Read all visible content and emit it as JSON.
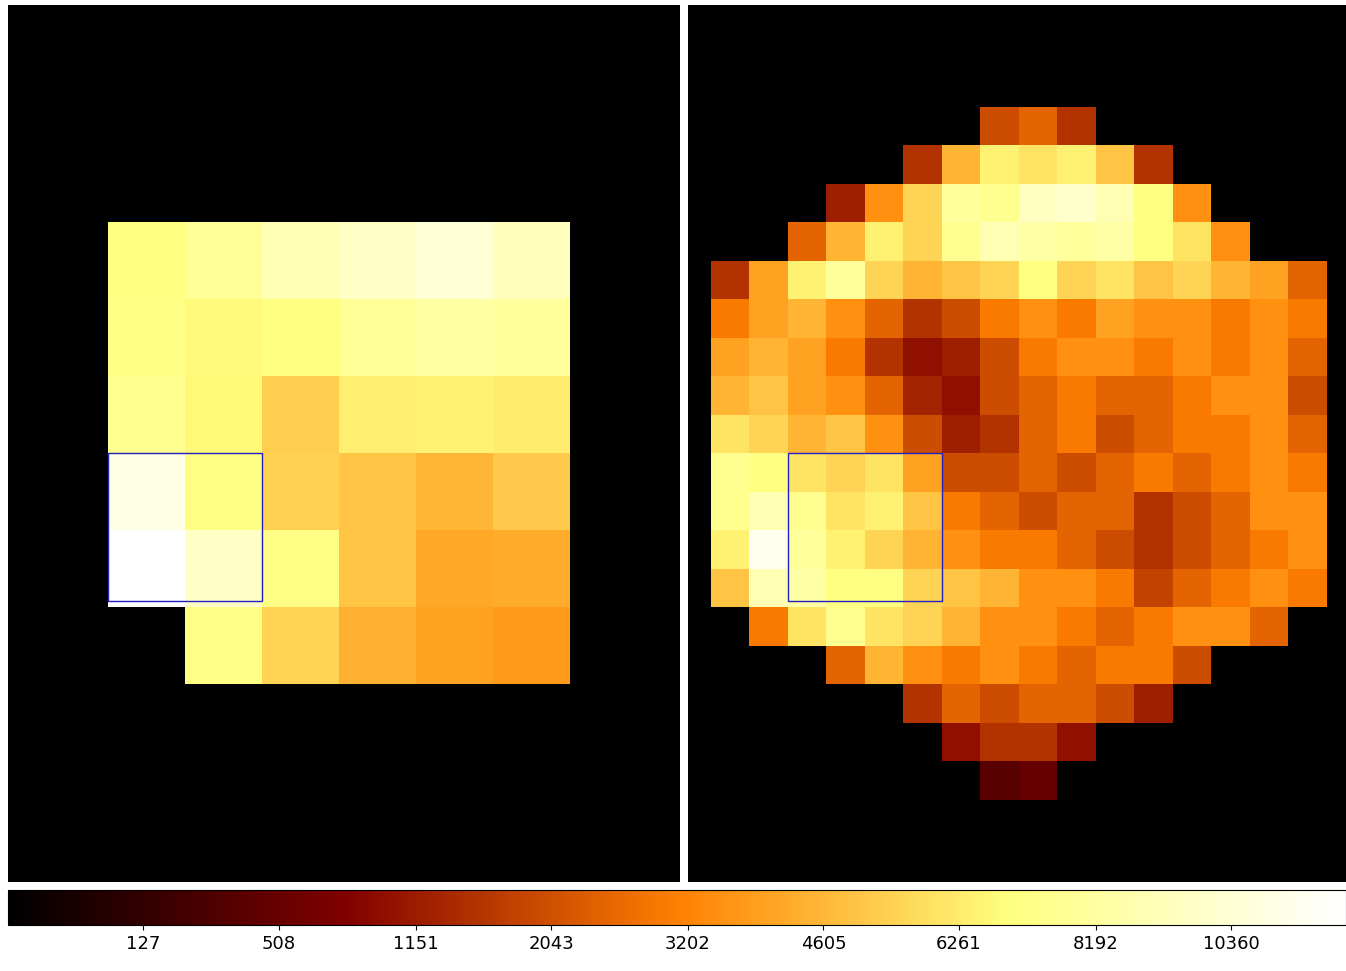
{
  "chart_data": {
    "type": "heatmap",
    "tick_labels": false,
    "colorbar_range": [
      0,
      12400
    ],
    "colorbar_ticks": [
      127,
      508,
      1151,
      2043,
      3202,
      4605,
      6261,
      8192,
      10360
    ],
    "panels": [
      {
        "cells": [
          [
            7000,
            7800,
            9000,
            9800,
            10500,
            9300
          ],
          [
            7200,
            6800,
            7000,
            7800,
            8300,
            8000
          ],
          [
            7500,
            6700,
            5300,
            6400,
            6500,
            6300
          ],
          [
            11000,
            7200,
            5400,
            5000,
            4600,
            5200
          ],
          [
            12400,
            9800,
            7200,
            5000,
            4200,
            4300
          ],
          [
            null,
            7300,
            5500,
            4400,
            4000,
            3800
          ]
        ]
      },
      {
        "cells": [
          [
            null,
            null,
            null,
            null,
            null,
            null,
            null,
            2000,
            2500,
            1500,
            null,
            null,
            null,
            null,
            null,
            null
          ],
          [
            null,
            null,
            null,
            null,
            null,
            1500,
            4500,
            6500,
            6000,
            6500,
            5000,
            1500,
            null,
            null,
            null,
            null
          ],
          [
            null,
            null,
            null,
            1200,
            3500,
            5500,
            8000,
            7500,
            9500,
            10000,
            9000,
            7000,
            3500,
            null,
            null,
            null
          ],
          [
            null,
            null,
            2500,
            4500,
            6500,
            5500,
            7500,
            9000,
            8500,
            8000,
            8500,
            7000,
            6000,
            3500,
            null,
            null
          ],
          [
            1500,
            4000,
            6500,
            8000,
            5500,
            4500,
            5000,
            5500,
            7000,
            5500,
            6000,
            5000,
            5500,
            4500,
            4000,
            2500
          ],
          [
            3000,
            4000,
            4500,
            3500,
            2500,
            1500,
            2000,
            3000,
            3500,
            3000,
            4000,
            3500,
            3500,
            3000,
            3500,
            3000
          ],
          [
            4000,
            4500,
            4000,
            3000,
            1500,
            1000,
            1200,
            2000,
            3000,
            3500,
            3500,
            3000,
            3500,
            3000,
            3500,
            2500
          ],
          [
            4500,
            5000,
            4000,
            3500,
            2500,
            1300,
            1000,
            2000,
            2500,
            3000,
            2500,
            2500,
            3000,
            3500,
            3500,
            2000
          ],
          [
            6000,
            5500,
            4500,
            5000,
            3500,
            2000,
            1200,
            1500,
            2500,
            3000,
            2000,
            2500,
            3000,
            3000,
            3500,
            2500
          ],
          [
            7500,
            7000,
            6000,
            5500,
            6000,
            4000,
            2000,
            2000,
            2500,
            2000,
            2500,
            3000,
            2500,
            3000,
            3500,
            3000
          ],
          [
            7500,
            9000,
            7500,
            6000,
            6500,
            5000,
            3000,
            2500,
            2000,
            2500,
            2500,
            1500,
            2000,
            2500,
            3500,
            3500
          ],
          [
            6500,
            11500,
            8000,
            6500,
            5500,
            4500,
            3500,
            3000,
            3000,
            2500,
            2000,
            1500,
            2000,
            2500,
            3000,
            3500
          ],
          [
            5000,
            9000,
            8500,
            7000,
            7000,
            5500,
            5000,
            4500,
            3500,
            3500,
            3000,
            1800,
            2500,
            3000,
            3500,
            3000
          ],
          [
            null,
            3000,
            6000,
            7500,
            6000,
            5500,
            4500,
            3500,
            3500,
            3000,
            2500,
            3000,
            3500,
            3500,
            2500,
            null
          ],
          [
            null,
            null,
            null,
            2500,
            4500,
            3500,
            3000,
            3500,
            3000,
            2500,
            3000,
            3000,
            2000,
            null,
            null,
            null
          ],
          [
            null,
            null,
            null,
            null,
            null,
            1500,
            2500,
            2000,
            2500,
            2500,
            2000,
            1200,
            null,
            null,
            null,
            null
          ],
          [
            null,
            null,
            null,
            null,
            null,
            null,
            1000,
            1500,
            1500,
            1000,
            null,
            null,
            null,
            null,
            null,
            null
          ],
          [
            null,
            null,
            null,
            null,
            null,
            null,
            null,
            400,
            500,
            null,
            null,
            null,
            null,
            null,
            null,
            null
          ]
        ]
      }
    ]
  }
}
